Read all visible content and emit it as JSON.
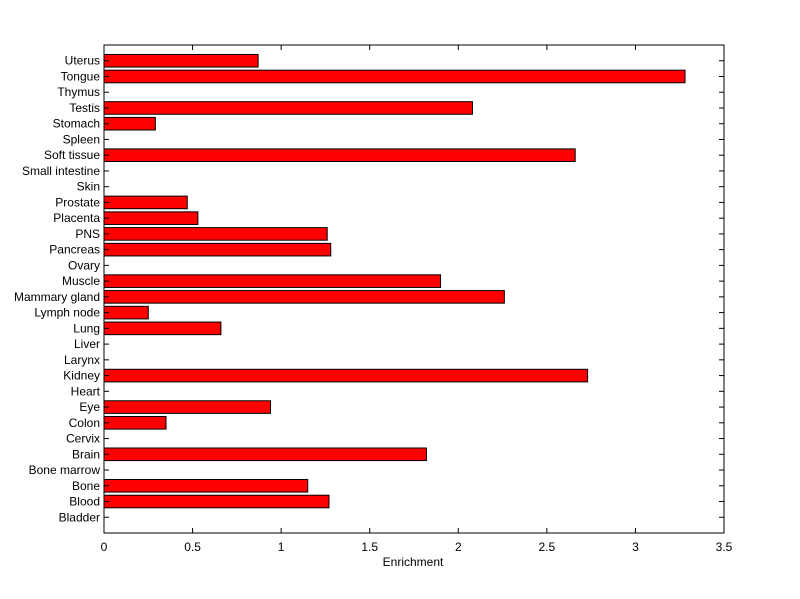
{
  "chart_data": {
    "type": "bar",
    "orientation": "horizontal",
    "categories": [
      "Bladder",
      "Blood",
      "Bone",
      "Bone marrow",
      "Brain",
      "Cervix",
      "Colon",
      "Eye",
      "Heart",
      "Kidney",
      "Larynx",
      "Liver",
      "Lung",
      "Lymph node",
      "Mammary gland",
      "Muscle",
      "Ovary",
      "Pancreas",
      "PNS",
      "Placenta",
      "Prostate",
      "Skin",
      "Small intestine",
      "Soft tissue",
      "Spleen",
      "Stomach",
      "Testis",
      "Thymus",
      "Tongue",
      "Uterus"
    ],
    "values": [
      0,
      1.27,
      1.15,
      0,
      1.82,
      0,
      0.35,
      0.94,
      0,
      2.73,
      0,
      0,
      0.66,
      0.25,
      2.26,
      1.9,
      0,
      1.28,
      1.26,
      0.53,
      0.47,
      0,
      0,
      2.66,
      0,
      0.29,
      2.08,
      0,
      3.28,
      0.87
    ],
    "xlabel": "Enrichment",
    "ylabel": "",
    "title": "",
    "xlim": [
      0,
      3.5
    ],
    "xticks": [
      0,
      0.5,
      1,
      1.5,
      2,
      2.5,
      3,
      3.5
    ],
    "xtick_labels": [
      "0",
      "0.5",
      "1",
      "1.5",
      "2",
      "2.5",
      "3",
      "3.5"
    ],
    "grid": false,
    "bar_color": "#ff0000",
    "edge_color": "#000000"
  }
}
